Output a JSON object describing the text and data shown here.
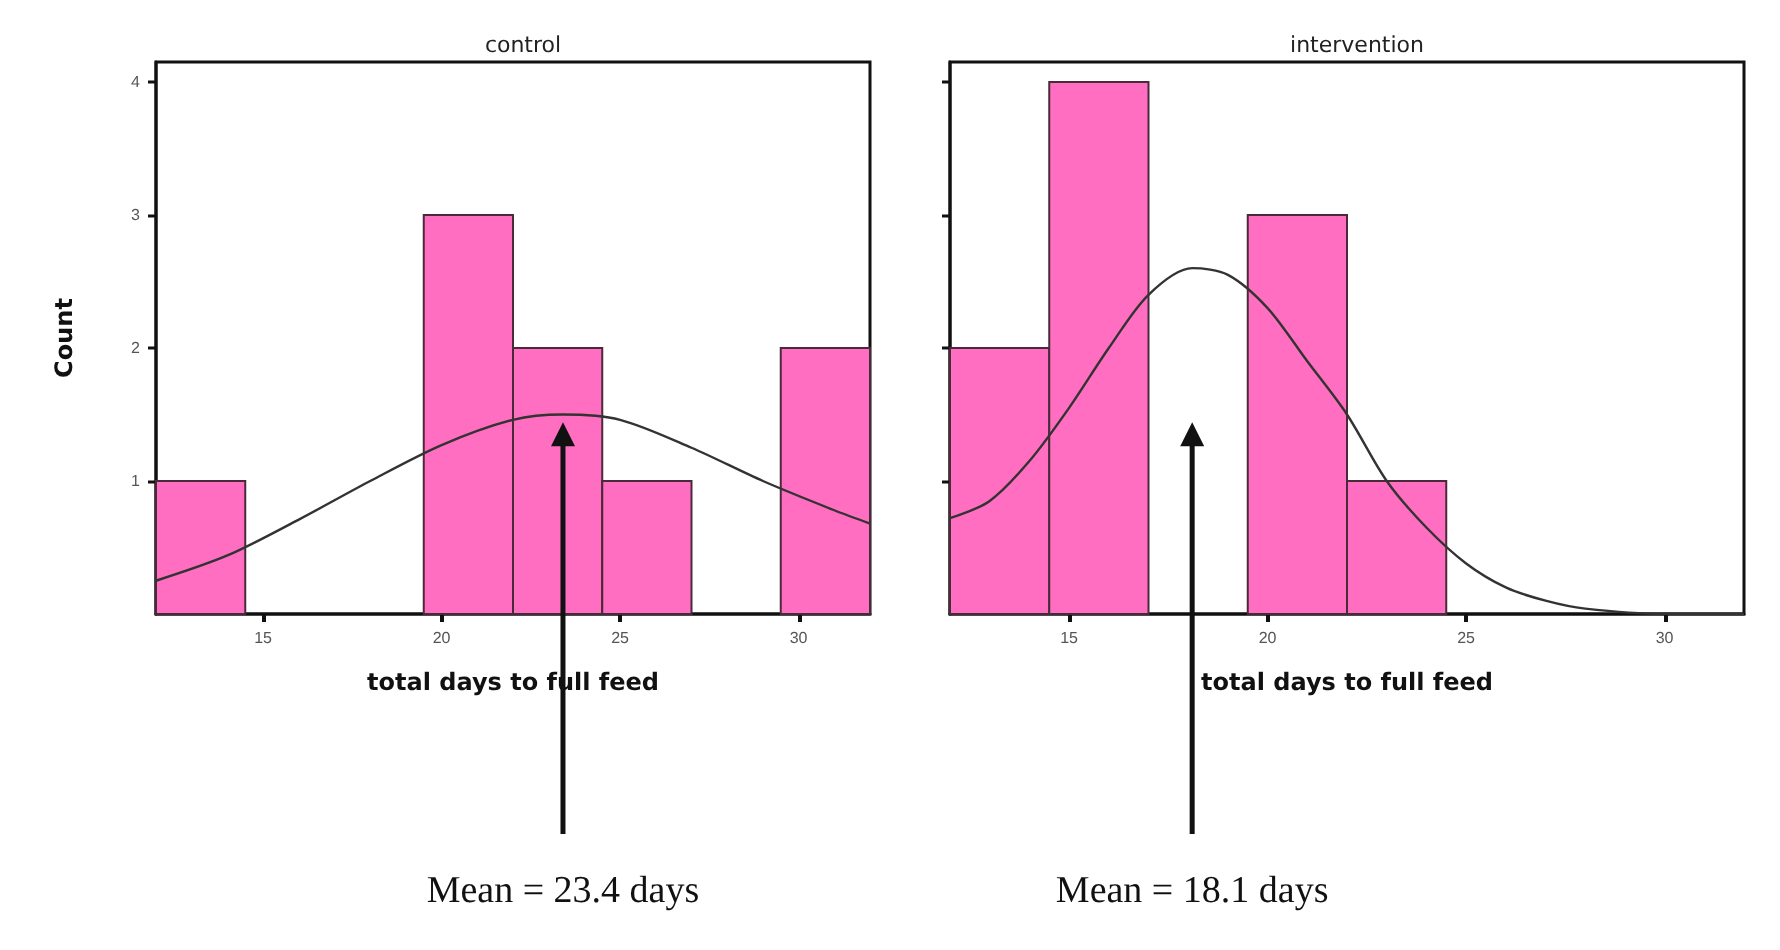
{
  "chart_data": [
    {
      "type": "histogram",
      "title": "control",
      "xlabel": "total days to full feed",
      "ylabel": "Count",
      "bins": [
        12,
        14.5,
        17,
        19.5,
        22,
        24.5,
        27,
        29.5,
        32
      ],
      "values": [
        1,
        0,
        0,
        3,
        2,
        1,
        0,
        2
      ],
      "color": "#ff6ec0",
      "xlim": [
        12,
        32
      ],
      "xticks": [
        15,
        20,
        25,
        30
      ],
      "ylim": [
        0,
        4.15
      ],
      "yticks": [
        1,
        2,
        3,
        4
      ],
      "grid": false,
      "series": [
        {
          "type": "line",
          "color": "#333333",
          "x": [
            12,
            14,
            16,
            18,
            20,
            22,
            23.4,
            25,
            27,
            29,
            31,
            32
          ],
          "values": [
            0.25,
            0.44,
            0.71,
            1.0,
            1.27,
            1.46,
            1.5,
            1.46,
            1.25,
            1.0,
            0.78,
            0.68
          ]
        }
      ],
      "annotations": [
        {
          "text": "Mean = 23.4 days",
          "x": 23.4
        }
      ]
    },
    {
      "type": "histogram",
      "title": "intervention",
      "xlabel": "total days to full feed",
      "bins": [
        12,
        14.5,
        17,
        19.5,
        22,
        24.5,
        27,
        29.5,
        32
      ],
      "values": [
        2,
        4,
        0,
        3,
        1,
        0,
        0,
        0
      ],
      "color": "#ff6ec0",
      "xlim": [
        12,
        32
      ],
      "xticks": [
        15,
        20,
        25,
        30
      ],
      "ylim": [
        0,
        4.15
      ],
      "yticks": [
        1,
        2,
        3,
        4
      ],
      "grid": false,
      "tick_labels": "x",
      "series": [
        {
          "type": "line",
          "color": "#333333",
          "x": [
            12,
            13,
            14,
            15,
            16,
            17,
            18.1,
            19,
            20,
            21,
            22,
            23,
            24,
            25,
            26,
            27,
            28,
            30,
            32
          ],
          "values": [
            0.72,
            0.85,
            1.15,
            1.55,
            2.0,
            2.4,
            2.6,
            2.55,
            2.3,
            1.9,
            1.5,
            1.0,
            0.65,
            0.38,
            0.2,
            0.1,
            0.04,
            0,
            0
          ]
        }
      ],
      "annotations": [
        {
          "text": "Mean = 18.1 days",
          "x": 18.1
        }
      ]
    }
  ]
}
